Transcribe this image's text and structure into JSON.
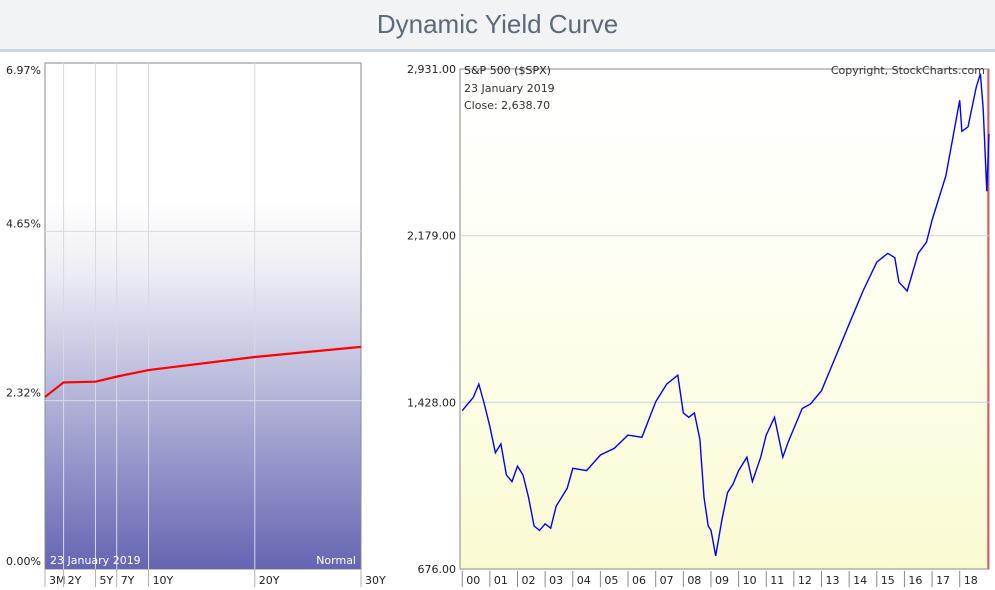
{
  "page": {
    "title": "Dynamic Yield Curve"
  },
  "chart_data": [
    {
      "type": "line",
      "title": "",
      "date": "23  January 2019",
      "curve_shape": "Normal",
      "x": [
        "3M",
        "2Y",
        "5Y",
        "7Y",
        "10Y",
        "20Y",
        "30Y"
      ],
      "x_years": [
        0.25,
        2,
        5,
        7,
        10,
        20,
        30
      ],
      "series": [
        {
          "values": [
            2.37,
            2.57,
            2.58,
            2.65,
            2.74,
            2.92,
            3.06
          ]
        }
      ],
      "y_ticks": [
        0.0,
        2.32,
        4.65,
        6.97
      ],
      "y_tick_labels": [
        "0.00%",
        "2.32%",
        "4.65%",
        "6.97%"
      ],
      "ylim": [
        0.0,
        6.97
      ],
      "grid": true,
      "line_color": "#ff0000"
    },
    {
      "type": "line",
      "label": "S&P 500 ($SPX)",
      "copyright": "Copyright, StockCharts.com",
      "date": "23  January 2019",
      "close_label": "Close: 2,638.70",
      "x_tick_labels": [
        "00",
        "01",
        "02",
        "03",
        "04",
        "05",
        "06",
        "07",
        "08",
        "09",
        "10",
        "11",
        "12",
        "13",
        "14",
        "15",
        "16",
        "17",
        "18"
      ],
      "y_ticks": [
        676.0,
        1428.0,
        2179.0,
        2931.0
      ],
      "y_tick_labels": [
        "676.00",
        "1,428.00",
        "2,179.00",
        "2,931.00"
      ],
      "ylim": [
        676,
        2931
      ],
      "x_range": [
        1999.92,
        2019.06
      ],
      "grid": true,
      "line_color": "#0000ff",
      "series": [
        {
          "name": "S&P 500 ($SPX)",
          "x": [
            2000.0,
            2000.2,
            2000.4,
            2000.6,
            2000.8,
            2001.0,
            2001.2,
            2001.4,
            2001.6,
            2001.8,
            2002.0,
            2002.2,
            2002.4,
            2002.6,
            2002.8,
            2003.0,
            2003.2,
            2003.4,
            2003.6,
            2003.8,
            2004.0,
            2004.5,
            2005.0,
            2005.5,
            2006.0,
            2006.5,
            2007.0,
            2007.4,
            2007.8,
            2008.0,
            2008.2,
            2008.4,
            2008.6,
            2008.75,
            2008.9,
            2009.0,
            2009.17,
            2009.4,
            2009.6,
            2009.8,
            2010.0,
            2010.3,
            2010.5,
            2010.8,
            2011.0,
            2011.3,
            2011.6,
            2011.8,
            2012.0,
            2012.3,
            2012.6,
            2013.0,
            2013.5,
            2014.0,
            2014.5,
            2015.0,
            2015.4,
            2015.65,
            2015.8,
            2016.1,
            2016.5,
            2016.8,
            2017.0,
            2017.5,
            2018.0,
            2018.08,
            2018.3,
            2018.6,
            2018.75,
            2018.85,
            2018.98,
            2019.06
          ],
          "values": [
            1390,
            1420,
            1450,
            1510,
            1420,
            1320,
            1200,
            1240,
            1100,
            1070,
            1140,
            1100,
            1000,
            870,
            850,
            880,
            860,
            960,
            1000,
            1040,
            1130,
            1120,
            1190,
            1220,
            1280,
            1270,
            1430,
            1510,
            1550,
            1380,
            1360,
            1380,
            1260,
            1000,
            870,
            850,
            735,
            900,
            1020,
            1060,
            1120,
            1180,
            1070,
            1180,
            1280,
            1360,
            1180,
            1250,
            1310,
            1400,
            1420,
            1480,
            1630,
            1780,
            1930,
            2060,
            2100,
            2080,
            1970,
            1930,
            2100,
            2150,
            2250,
            2450,
            2790,
            2650,
            2670,
            2850,
            2910,
            2750,
            2380,
            2638
          ]
        }
      ]
    }
  ]
}
